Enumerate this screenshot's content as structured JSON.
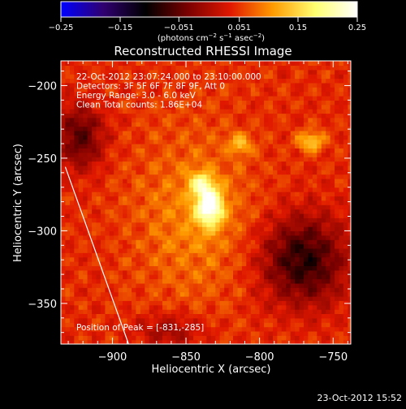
{
  "chart_data": {
    "type": "heatmap",
    "title": "Reconstructed RHESSI Image",
    "xlabel": "Heliocentric X (arcsec)",
    "ylabel": "Heliocentric Y (arcsec)",
    "xlim": [
      -935,
      -738
    ],
    "ylim": [
      -378,
      -183
    ],
    "x_ticks": [
      -900,
      -850,
      -800,
      -750
    ],
    "x_tick_labels": [
      "−900",
      "−850",
      "−800",
      "−750"
    ],
    "y_ticks": [
      -200,
      -250,
      -300,
      -350
    ],
    "y_tick_labels": [
      "−200",
      "−250",
      "−300",
      "−350"
    ],
    "colorbar": {
      "range": [
        -0.25,
        0.25
      ],
      "ticks": [
        -0.25,
        -0.15,
        -0.051,
        0.051,
        0.15,
        0.25
      ],
      "tick_labels": [
        "−0.25",
        "−0.15",
        "−0.051",
        "0.051",
        "0.15",
        "0.25"
      ],
      "unit_text": "(photons cm",
      "unit_exp1": "−2",
      "unit_text2": " s",
      "unit_exp2": "−1",
      "unit_text3": " asec",
      "unit_exp3": "−2",
      "unit_close": ")",
      "colors": [
        "#0000ff",
        "#300070",
        "#000000",
        "#7a0000",
        "#e01800",
        "#ff9a00",
        "#ffff70",
        "#ffffff"
      ]
    },
    "info_lines": [
      "22-Oct-2012 23:07:24.000 to 23:10:00.000",
      "Detectors: 3F 5F 6F 7F 8F 9F, Att 0",
      "Energy Range: 3.0 - 6.0 keV",
      "Clean     Total counts: 1.86E+04"
    ],
    "peak_label": "Position of Peak = [-831,-285]",
    "peak": [
      -831,
      -285
    ],
    "sources": [
      {
        "x": -834,
        "y": -283,
        "value": 0.25
      },
      {
        "x": -839,
        "y": -268,
        "value": 0.2
      },
      {
        "x": -813,
        "y": -240,
        "value": 0.13
      },
      {
        "x": -765,
        "y": -238,
        "value": 0.15
      }
    ],
    "limb_line": [
      [
        -932,
        -256
      ],
      [
        -889,
        -378
      ]
    ]
  },
  "timestamp": "23-Oct-2012 15:52"
}
